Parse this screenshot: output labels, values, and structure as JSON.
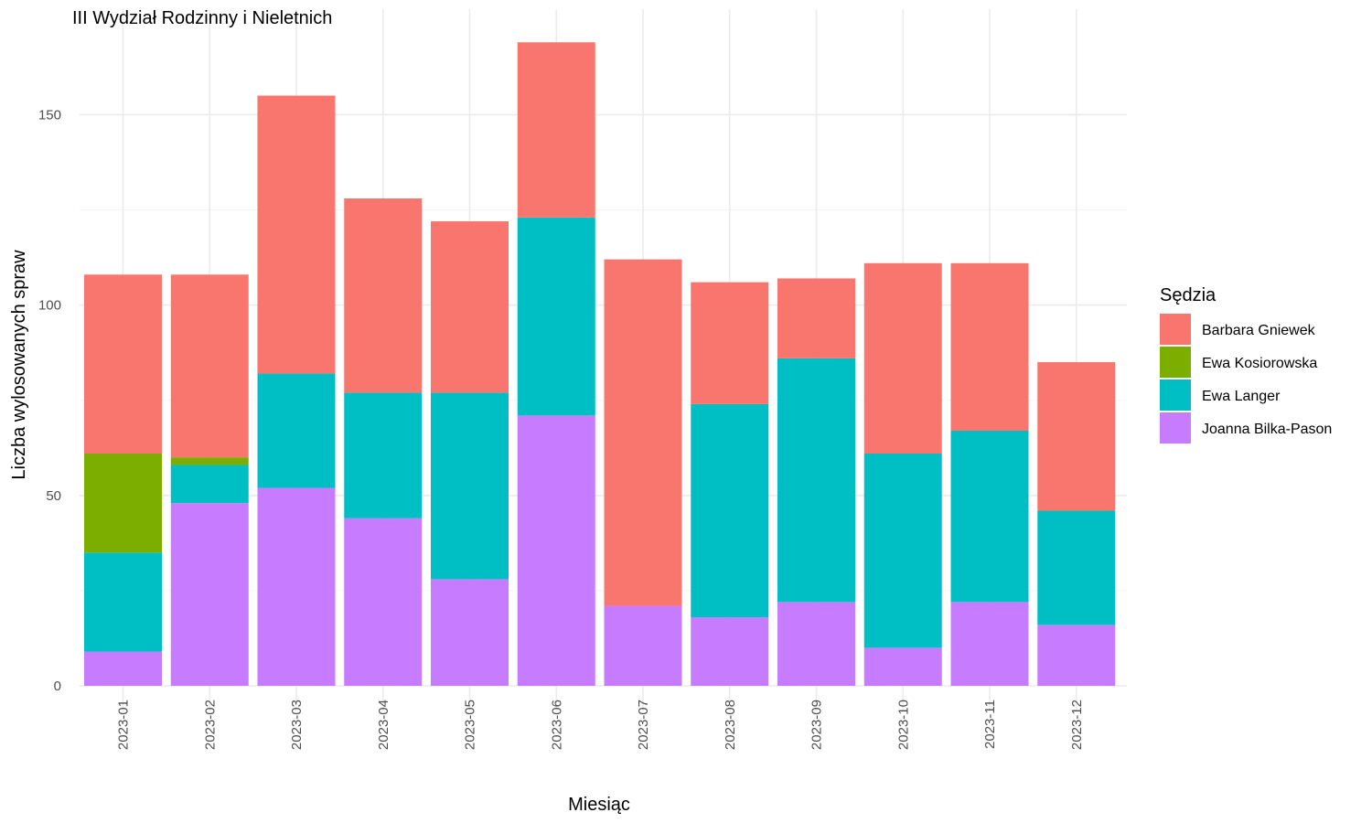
{
  "chart_data": {
    "type": "bar",
    "stacked": true,
    "title": "III Wydział Rodzinny i Nieletnich",
    "xlabel": "Miesiąc",
    "ylabel": "Liczba wylosowanych spraw",
    "ylim": [
      0,
      172
    ],
    "yticks": [
      0,
      50,
      100,
      150
    ],
    "grid": true,
    "legend_title": "Sędzia",
    "legend_position": "right",
    "categories": [
      "2023-01",
      "2023-02",
      "2023-03",
      "2023-04",
      "2023-05",
      "2023-06",
      "2023-07",
      "2023-08",
      "2023-09",
      "2023-10",
      "2023-11",
      "2023-12"
    ],
    "series": [
      {
        "name": "Joanna Bilka-Pason",
        "color": "#C77CFF",
        "values": [
          9,
          48,
          52,
          44,
          28,
          71,
          21,
          18,
          22,
          10,
          22,
          16
        ]
      },
      {
        "name": "Ewa Langer",
        "color": "#00BFC4",
        "values": [
          26,
          10,
          30,
          33,
          49,
          52,
          0,
          56,
          64,
          51,
          45,
          30
        ]
      },
      {
        "name": "Ewa Kosiorowska",
        "color": "#7CAE00",
        "values": [
          26,
          2,
          0,
          0,
          0,
          0,
          0,
          0,
          0,
          0,
          0,
          0
        ]
      },
      {
        "name": "Barbara Gniewek",
        "color": "#F8766D",
        "values": [
          47,
          48,
          73,
          51,
          45,
          46,
          91,
          32,
          21,
          50,
          44,
          39
        ]
      }
    ],
    "legend_order": [
      "Barbara Gniewek",
      "Ewa Kosiorowska",
      "Ewa Langer",
      "Joanna Bilka-Pason"
    ]
  }
}
